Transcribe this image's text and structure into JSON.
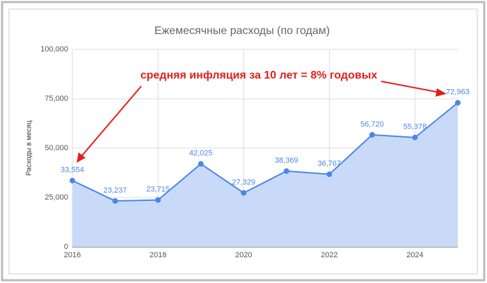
{
  "chart_data": {
    "type": "area",
    "title": "Ежемесячные расходы (по годам)",
    "y_label": "Расходы в месяц",
    "annotation": "средняя инфляция за 10 лет = 8% годовых",
    "x": [
      2016,
      2017,
      2018,
      2019,
      2020,
      2021,
      2022,
      2023,
      2024,
      2025
    ],
    "values": [
      33554,
      23237,
      23715,
      42025,
      27329,
      38369,
      36767,
      56720,
      55378,
      72963
    ],
    "value_labels": [
      "33,554",
      "23,237",
      "23,715",
      "42,025",
      "27,329",
      "38,369",
      "36,767",
      "56,720",
      "55,378",
      "72,963"
    ],
    "color": "#4a86e8",
    "fill": "#c9daf8",
    "annotation_color": "#e0201c",
    "xlim": [
      2016,
      2025
    ],
    "xticks": [
      2016,
      2018,
      2020,
      2022,
      2024
    ],
    "ylim": [
      0,
      100000
    ],
    "yticks": [
      0,
      {
        "value": 25000,
        "label": "25,000"
      },
      {
        "value": 50000,
        "label": "50,000"
      },
      {
        "value": 75000,
        "label": "75,000"
      },
      {
        "value": 100000,
        "label": "100,000"
      }
    ],
    "grid": true
  }
}
